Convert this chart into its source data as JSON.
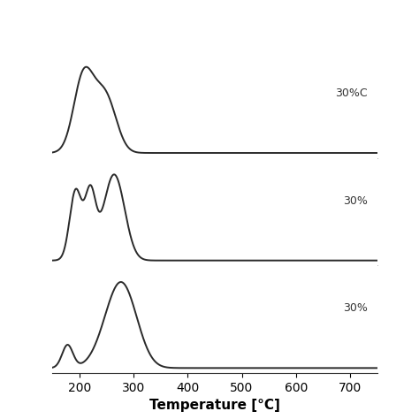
{
  "title": "",
  "xlabel": "Temperature [°C]",
  "xlim": [
    150,
    750
  ],
  "xticks": [
    200,
    300,
    400,
    500,
    600,
    700
  ],
  "curve_labels": [
    "30%C",
    "30%",
    "30%"
  ],
  "background_color": "#ffffff",
  "line_color": "#2a2a2a",
  "line_width": 1.4,
  "fig_width": 4.74,
  "fig_height": 4.74,
  "dpi": 100
}
